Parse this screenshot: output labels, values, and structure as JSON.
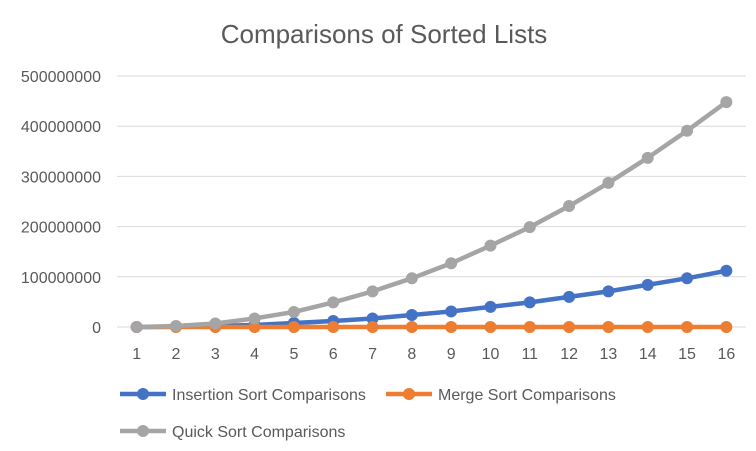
{
  "chart_data": {
    "type": "line",
    "title": "Comparisons of Sorted Lists",
    "xlabel": "",
    "ylabel": "",
    "categories": [
      "1",
      "2",
      "3",
      "4",
      "5",
      "6",
      "7",
      "8",
      "9",
      "10",
      "11",
      "12",
      "13",
      "14",
      "15",
      "16"
    ],
    "ylim": [
      0,
      500000000
    ],
    "yticks": [
      "0",
      "100000000",
      "200000000",
      "300000000",
      "400000000",
      "500000000"
    ],
    "grid": true,
    "legend_position": "bottom",
    "series": [
      {
        "name": "Insertion Sort Comparisons",
        "color": "#4472C4",
        "values": [
          0,
          500000,
          2000000,
          4000000,
          8000000,
          12000000,
          17000000,
          24000000,
          31000000,
          40000000,
          49000000,
          60000000,
          71000000,
          84000000,
          97000000,
          112000000
        ]
      },
      {
        "name": "Merge Sort Comparisons",
        "color": "#ED7D31",
        "values": [
          0,
          0,
          0,
          0,
          0,
          0,
          0,
          0,
          0,
          0,
          0,
          0,
          0,
          0,
          0,
          0
        ]
      },
      {
        "name": "Quick Sort Comparisons",
        "color": "#A5A5A5",
        "values": [
          0,
          2000000,
          7000000,
          17000000,
          30000000,
          49000000,
          71000000,
          97000000,
          127000000,
          162000000,
          199000000,
          241000000,
          287000000,
          337000000,
          391000000,
          448000000
        ]
      }
    ]
  }
}
